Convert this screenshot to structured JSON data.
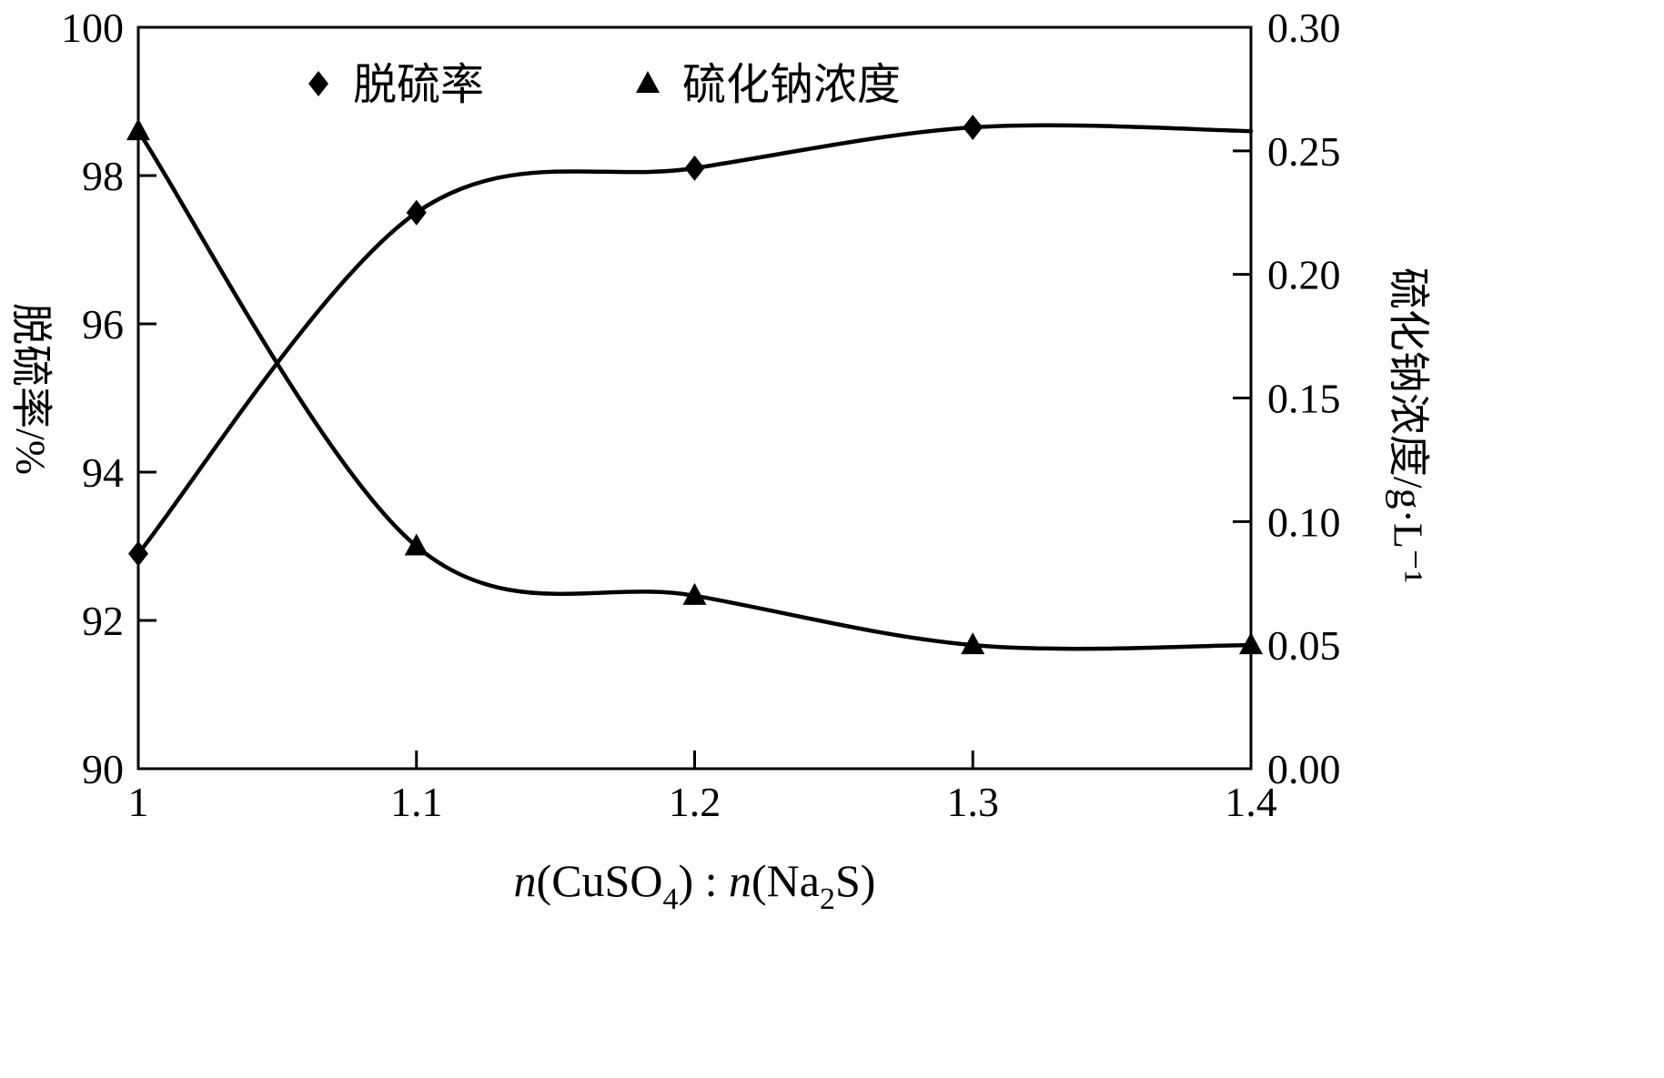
{
  "colors": {
    "foreground": "#000000",
    "background": "#ffffff"
  },
  "chart_data": {
    "type": "line",
    "title": "",
    "x_axis": {
      "label_parts": [
        {
          "t": "n",
          "i": true
        },
        {
          "t": "(CuSO"
        },
        {
          "t": "4",
          "sub": true
        },
        {
          "t": ")"
        },
        {
          "t": " : "
        },
        {
          "t": "n",
          "i": true
        },
        {
          "t": "(Na"
        },
        {
          "t": "2",
          "sub": true
        },
        {
          "t": "S)"
        }
      ],
      "min": 1,
      "max": 1.4,
      "ticks": [
        {
          "v": 1.0,
          "label": "1"
        },
        {
          "v": 1.1,
          "label": "1.1"
        },
        {
          "v": 1.2,
          "label": "1.2"
        },
        {
          "v": 1.3,
          "label": "1.3"
        },
        {
          "v": 1.4,
          "label": "1.4"
        }
      ]
    },
    "left_axis": {
      "label": "脱硫率/%",
      "min": 90,
      "max": 100,
      "ticks": [
        {
          "v": 90,
          "label": "90"
        },
        {
          "v": 92,
          "label": "92"
        },
        {
          "v": 94,
          "label": "94"
        },
        {
          "v": 96,
          "label": "96"
        },
        {
          "v": 98,
          "label": "98"
        },
        {
          "v": 100,
          "label": "100"
        }
      ]
    },
    "right_axis": {
      "label": "硫化钠浓度/g·L⁻¹",
      "min": 0,
      "max": 0.3,
      "ticks": [
        {
          "v": 0.0,
          "label": "0.00"
        },
        {
          "v": 0.05,
          "label": "0.05"
        },
        {
          "v": 0.1,
          "label": "0.10"
        },
        {
          "v": 0.15,
          "label": "0.15"
        },
        {
          "v": 0.2,
          "label": "0.20"
        },
        {
          "v": 0.25,
          "label": "0.25"
        },
        {
          "v": 0.3,
          "label": "0.30"
        }
      ]
    },
    "legend": [
      {
        "marker": "diamond",
        "label": "脱硫率"
      },
      {
        "marker": "triangle",
        "label": "硫化钠浓度"
      }
    ],
    "series": [
      {
        "name": "脱硫率",
        "axis": "left",
        "marker": "diamond",
        "color": "#000000",
        "points": [
          {
            "x": 1.0,
            "y": 92.9,
            "marker": true
          },
          {
            "x": 1.1,
            "y": 97.5,
            "marker": true
          },
          {
            "x": 1.2,
            "y": 98.1,
            "marker": true
          },
          {
            "x": 1.3,
            "y": 98.65,
            "marker": true
          },
          {
            "x": 1.4,
            "y": 98.6,
            "marker": false
          }
        ]
      },
      {
        "name": "硫化钠浓度",
        "axis": "right",
        "marker": "triangle",
        "color": "#000000",
        "points": [
          {
            "x": 1.0,
            "y": 0.258,
            "marker": true
          },
          {
            "x": 1.1,
            "y": 0.09,
            "marker": true
          },
          {
            "x": 1.2,
            "y": 0.07,
            "marker": true
          },
          {
            "x": 1.3,
            "y": 0.05,
            "marker": true
          },
          {
            "x": 1.4,
            "y": 0.05,
            "marker": true
          }
        ]
      }
    ]
  }
}
